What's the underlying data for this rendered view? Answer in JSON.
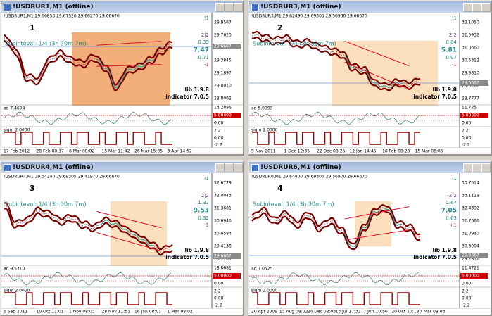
{
  "windows": [
    {
      "title": "!USDRUR1,M1 (offline)",
      "header": "!USDRUR1,M1  29.66853 29.67520 29.66270 29.66670",
      "number": "1",
      "subinterval": "Subinteval: 1/4 (3h 30m 7m)",
      "stats": [
        "!1",
        "2|2",
        "0.39",
        "7.47",
        "0.71",
        "-1"
      ],
      "lib": "lib 1.9.8",
      "indicator": "indicator 7.0.5",
      "prices": [
        "29.9567",
        "29.7620",
        "29.5732",
        "29.3845",
        "29.1897",
        "29.0010",
        "28.8062"
      ],
      "current_price": "29.6667",
      "sub1": {
        "label": "aq 7.4694",
        "axis": [
          "13.2896",
          "5.00000",
          "0.00"
        ]
      },
      "sub2": {
        "label": "sigm 2.0000",
        "axis": [
          "2.2",
          "0.00",
          "-2.2"
        ]
      },
      "times": [
        "17 Feb 2012",
        "28 Feb 08:17",
        "6 Mar 08:02",
        "15 Mar 11:42",
        "26 Mar 15:05",
        "3 Apr 14:52"
      ]
    },
    {
      "title": "!USDRUR3,M1 (offline)",
      "header": "!USDRUR3,M1  29.62490 29.69305 29.56900 29.66670",
      "number": "2",
      "subinterval": "Subinterval: 1/4 (3h 30m 7m)",
      "stats": [
        "!1",
        "2|2",
        "0.84",
        "5.81",
        "0.97",
        "-1"
      ],
      "lib": "lib 1.9.8",
      "indicator": "indicator 7.0.5",
      "prices": [
        "32.1050",
        "31.5932",
        "31.0660",
        "30.5312",
        "29.9810",
        "29.3267",
        "28.7777"
      ],
      "current_price": "29.6667",
      "sub1": {
        "label": "aq 5.0093",
        "axis": [
          "11.725",
          "5.00000",
          "0.00"
        ]
      },
      "sub2": {
        "label": "sigm 2.0000",
        "axis": [
          "2.2",
          "0.00",
          "-2.2"
        ]
      },
      "times": [
        "9 Nov 2011",
        "1 Dec 12:35",
        "22 Dec 08:25",
        "12 Jan 14:45",
        "10 Feb 08:28",
        "15 Mar 08:05"
      ]
    },
    {
      "title": "!USDRUR4,M1 (offline)",
      "header": "!USDRUR4,M1  29.54240 29.69305 29.41970 29.66670",
      "number": "3",
      "subinterval": "Subinteval: 1/4 (3h 30m 7m)",
      "stats": [
        "!1",
        "2|2",
        "1.32",
        "9.53",
        "0.32",
        "-1"
      ],
      "lib": "lib 1.9.8",
      "indicator": "indicator 7.0.5",
      "prices": [
        "32.6779",
        "32.0043",
        "31.3681",
        "30.6946",
        "30.0584",
        "29.4138",
        "28.7769"
      ],
      "current_price": "29.6667",
      "sub1": {
        "label": "aq 9.5310",
        "axis": [
          "18.8681",
          "5.00000",
          "0.00"
        ]
      },
      "sub2": {
        "label": "sigm 2.0000",
        "axis": [
          "2.2",
          "0.00",
          "-2.2"
        ]
      },
      "times": [
        "6 Sep 2011",
        "10 Oct 11:01",
        "1 Nov 08:03",
        "28 Nov 11:51",
        "16 Jan 08:01",
        "1 Mar 08:02"
      ]
    },
    {
      "title": "!USDRUR6,M1 (offline)",
      "header": "!USDRUR6,M1  29.64800 29.69305 29.56900 29.66670",
      "number": "4",
      "subinterval": "Subinteval: 1/4 (3h 30m 7m)",
      "stats": [
        "!1",
        "-2|2",
        "2.67",
        "7.05",
        "0.63",
        "+1"
      ],
      "lib": "lib 1.9.8",
      "indicator": "indicator 7.0.5",
      "prices": [
        "33.7514",
        "33.1118",
        "32.4392",
        "31.7666",
        "31.0940",
        "30.3904",
        "29.2816"
      ],
      "current_price": "29.6667",
      "sub1": {
        "label": "aq 7.0525",
        "axis": [
          "11.4721",
          "5.00000",
          "0.00"
        ]
      },
      "sub2": {
        "label": "sigm 2.0000",
        "axis": [
          "2.2",
          "0.00",
          "-2.2"
        ]
      },
      "times": [
        "20 Apr 2009",
        "13 Aug 08:02",
        "24 Dec 08:03",
        "13 Jul 17:32",
        "7 Jun 10:50",
        "20 Oct 10:18",
        "7 Mar 08:03"
      ]
    }
  ]
}
